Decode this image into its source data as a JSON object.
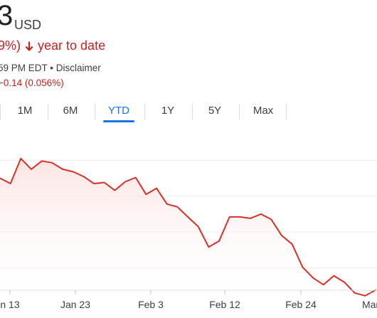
{
  "quote": {
    "price_fragment": "3",
    "currency": "USD",
    "change_fragment": "9%)",
    "change_direction": "down",
    "period_label": "year to date",
    "time_fragment": "59 PM EDT",
    "separator": "•",
    "disclaimer_label": "Disclaimer",
    "after_hours_change": "−0.14 (0.056%)",
    "negative_color": "#c5221f"
  },
  "range_tabs": {
    "items": [
      "1M",
      "6M",
      "YTD",
      "1Y",
      "5Y",
      "Max"
    ],
    "selected": "YTD",
    "accent_color": "#1a73e8"
  },
  "chart_data": {
    "type": "area",
    "x_tick_labels": [
      "n 13",
      "Jan 23",
      "Feb 3",
      "Feb 12",
      "Feb 24",
      "Mar"
    ],
    "series": [
      {
        "values": [
          260,
          258.5,
          265.5,
          262.5,
          264.8,
          264.3,
          262.5,
          261.8,
          260.5,
          258.5,
          258.8,
          256.6,
          259,
          260.2,
          255.5,
          257.2,
          252.8,
          252,
          249.2,
          246.5,
          240.8,
          242.5,
          249.2,
          249.2,
          248.8,
          250,
          248.5,
          244,
          241.6,
          235.2,
          232.2,
          230.3,
          232.8,
          231,
          228,
          227.2,
          228.8
        ]
      }
    ],
    "line_color": "#d93025",
    "ylim": [
      222,
      272
    ],
    "grid": true
  }
}
